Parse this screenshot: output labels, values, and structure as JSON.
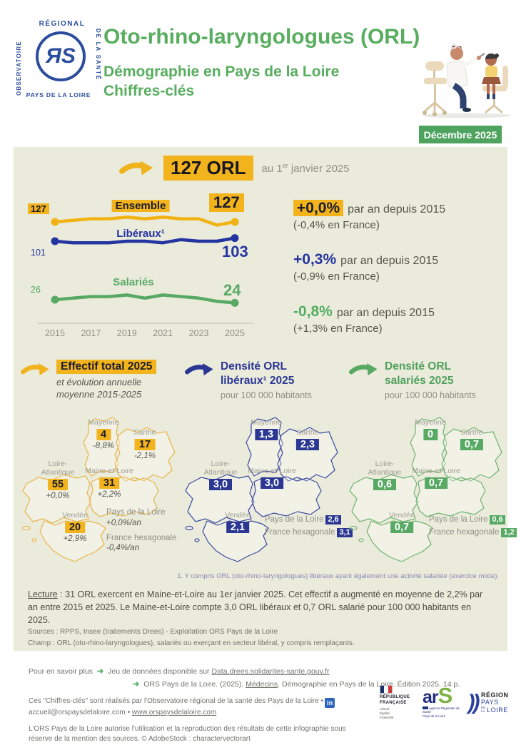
{
  "header": {
    "logo": {
      "top": "RÉGIONAL",
      "left": "OBSERVATOIRE",
      "right": "DE LA SANTÉ",
      "monogram": "ЯS",
      "bottom": "PAYS DE LA LOIRE"
    },
    "title": "Oto-rhino-laryngologues (ORL)",
    "subtitle1": "Démographie en Pays de la Loire",
    "subtitle2": "Chiffres-clés",
    "badge": "Décembre 2025"
  },
  "headline": {
    "value": "127 ORL",
    "date_pre": "au 1",
    "date_sup": "er",
    "date_post": " janvier 2025"
  },
  "chart_data": {
    "type": "line",
    "x": [
      2015,
      2016,
      2017,
      2018,
      2019,
      2020,
      2021,
      2022,
      2023,
      2024,
      2025
    ],
    "x_ticks": [
      "2015",
      "2017",
      "2019",
      "2021",
      "2023",
      "2025"
    ],
    "series": [
      {
        "name": "Ensemble",
        "color": "#F0B313",
        "start_label": "127",
        "end_label": "127",
        "values": [
          127,
          128,
          129,
          129,
          130,
          129,
          130,
          129,
          129,
          125,
          127
        ]
      },
      {
        "name": "Libéraux¹",
        "color": "#2434A0",
        "start_label": "101",
        "end_label": "103",
        "values": [
          101,
          100,
          100,
          100,
          101,
          101,
          100,
          102,
          101,
          101,
          103
        ]
      },
      {
        "name": "Salariés",
        "color": "#57A964",
        "start_label": "26",
        "end_label": "24",
        "values": [
          26,
          27,
          28,
          28,
          29,
          27,
          29,
          28,
          27,
          25,
          24
        ]
      }
    ],
    "legend_position": "inline",
    "grid": false
  },
  "stats": [
    {
      "value": "+0,0%",
      "text": "par an depuis 2015",
      "sub": "(-0,4% en France)"
    },
    {
      "value": "+0,3%",
      "text": "par an depuis 2015",
      "sub": "(-0,9% en France)"
    },
    {
      "value": "-0,8%",
      "text": "par an depuis 2015",
      "sub": "(+1,3% en France)"
    }
  ],
  "maps": [
    {
      "color": "#E8B44A",
      "title": "Effectif total 2025",
      "subtitle_line1": "et évolution annuelle",
      "subtitle_line2": "moyenne 2015-2025",
      "departments": [
        {
          "name": "Mayenne",
          "value": "4",
          "change": "-8,8%"
        },
        {
          "name": "Sarthe",
          "value": "17",
          "change": "-2,1%"
        },
        {
          "name": "Loire-Atlantique",
          "value": "55",
          "change": "+0,0%"
        },
        {
          "name": "Maine-et-Loire",
          "value": "31",
          "change": "+2,2%"
        },
        {
          "name": "Vendée",
          "value": "20",
          "change": "+2,9%"
        }
      ],
      "region": {
        "label": "Pays de la Loire",
        "value": "+0,0%/an"
      },
      "france": {
        "label": "France hexagonale",
        "value": "-0,4%/an"
      }
    },
    {
      "color": "#3A4A9F",
      "title_line1": "Densité ORL",
      "title_line2": "libéraux¹ 2025",
      "subtitle": "pour 100 000 habitants",
      "departments": [
        {
          "name": "Mayenne",
          "value": "1,3"
        },
        {
          "name": "Sarthe",
          "value": "2,3"
        },
        {
          "name": "Loire-Atlantique",
          "value": "3,0"
        },
        {
          "name": "Maine-et-Loire",
          "value": "3,0"
        },
        {
          "name": "Vendée",
          "value": "2,1"
        }
      ],
      "region": {
        "label": "Pays de la Loire",
        "value": "2,6"
      },
      "france": {
        "label": "France hexagonale",
        "value": "3,1"
      }
    },
    {
      "color": "#6FB36F",
      "title_line1": "Densité ORL",
      "title_line2": "salariés 2025",
      "subtitle": "pour 100 000 habitants",
      "departments": [
        {
          "name": "Mayenne",
          "value": "0"
        },
        {
          "name": "Sarthe",
          "value": "0,7"
        },
        {
          "name": "Loire-Atlantique",
          "value": "0,6"
        },
        {
          "name": "Maine-et-Loire",
          "value": "0,7"
        },
        {
          "name": "Vendée",
          "value": "0,7"
        }
      ],
      "region": {
        "label": "Pays de la Loire",
        "value": "0,6"
      },
      "france": {
        "label": "France hexagonale",
        "value": "1,2"
      }
    }
  ],
  "footnote": "1. Y compris ORL (oto-rhino-laryngologues) libéraux ayant également une activité salariée (exercice mixte).",
  "lecture": {
    "label": "Lecture",
    "text": " : 31 ORL exercent en Maine-et-Loire au 1er janvier 2025. Cet effectif a augmenté en moyenne de 2,2% par an entre 2015 et 2025. Le Maine-et-Loire compte 3,0 ORL libéraux et 0,7 ORL salarié pour 100 000 habitants en 2025."
  },
  "sources": "Sources : RPPS, Insee (traitements Drees) - Exploitation ORS Pays de la Loire",
  "champ": "Champ : ORL (oto-rhino-laryngologues), salariés ou exerçant en secteur libéral, y compris remplaçants.",
  "footer": {
    "more_label": "Pour en savoir plus",
    "item1_pre": "Jeu de données disponible sur ",
    "item1_link": "Data.drees.solidarites-sante.gouv.fr",
    "item2_pre": "ORS Pays de la Loire. (2025). ",
    "item2_link": "Médecins",
    "item2_post": ". Démographie en Pays de la Loire. Édition 2025. 14 p.",
    "credits_line1": "Ces \"Chiffres-clés\" sont réalisés par l'Observatoire régional de la santé des Pays de la Loire •",
    "linkedin": "in",
    "email": "accueil@orspaysdelaloire.com",
    "sep": "•",
    "site": "www.orspaysdelaloire.com",
    "repro": "L'ORS Pays de la Loire autorise l'utilisation et la reproduction des résultats de cette infographie sous réserve de la mention des sources. © AdobeStock : charactervectorart",
    "logos": {
      "rf_name1": "RÉPUBLIQUE",
      "rf_name2": "FRANÇAISE",
      "rf_motto1": "Liberté",
      "rf_motto2": "Égalité",
      "rf_motto3": "Fraternité",
      "ars_ar": "ar",
      "ars_s": "S",
      "ars_sub1": "Agence Régionale de Santé",
      "ars_sub2": "Pays de la Loire",
      "region_name": "RÉGION",
      "region_pays": "PAYS",
      "region_dela1": "DE",
      "region_dela2": "LA",
      "region_loire": "LOIRE"
    }
  }
}
